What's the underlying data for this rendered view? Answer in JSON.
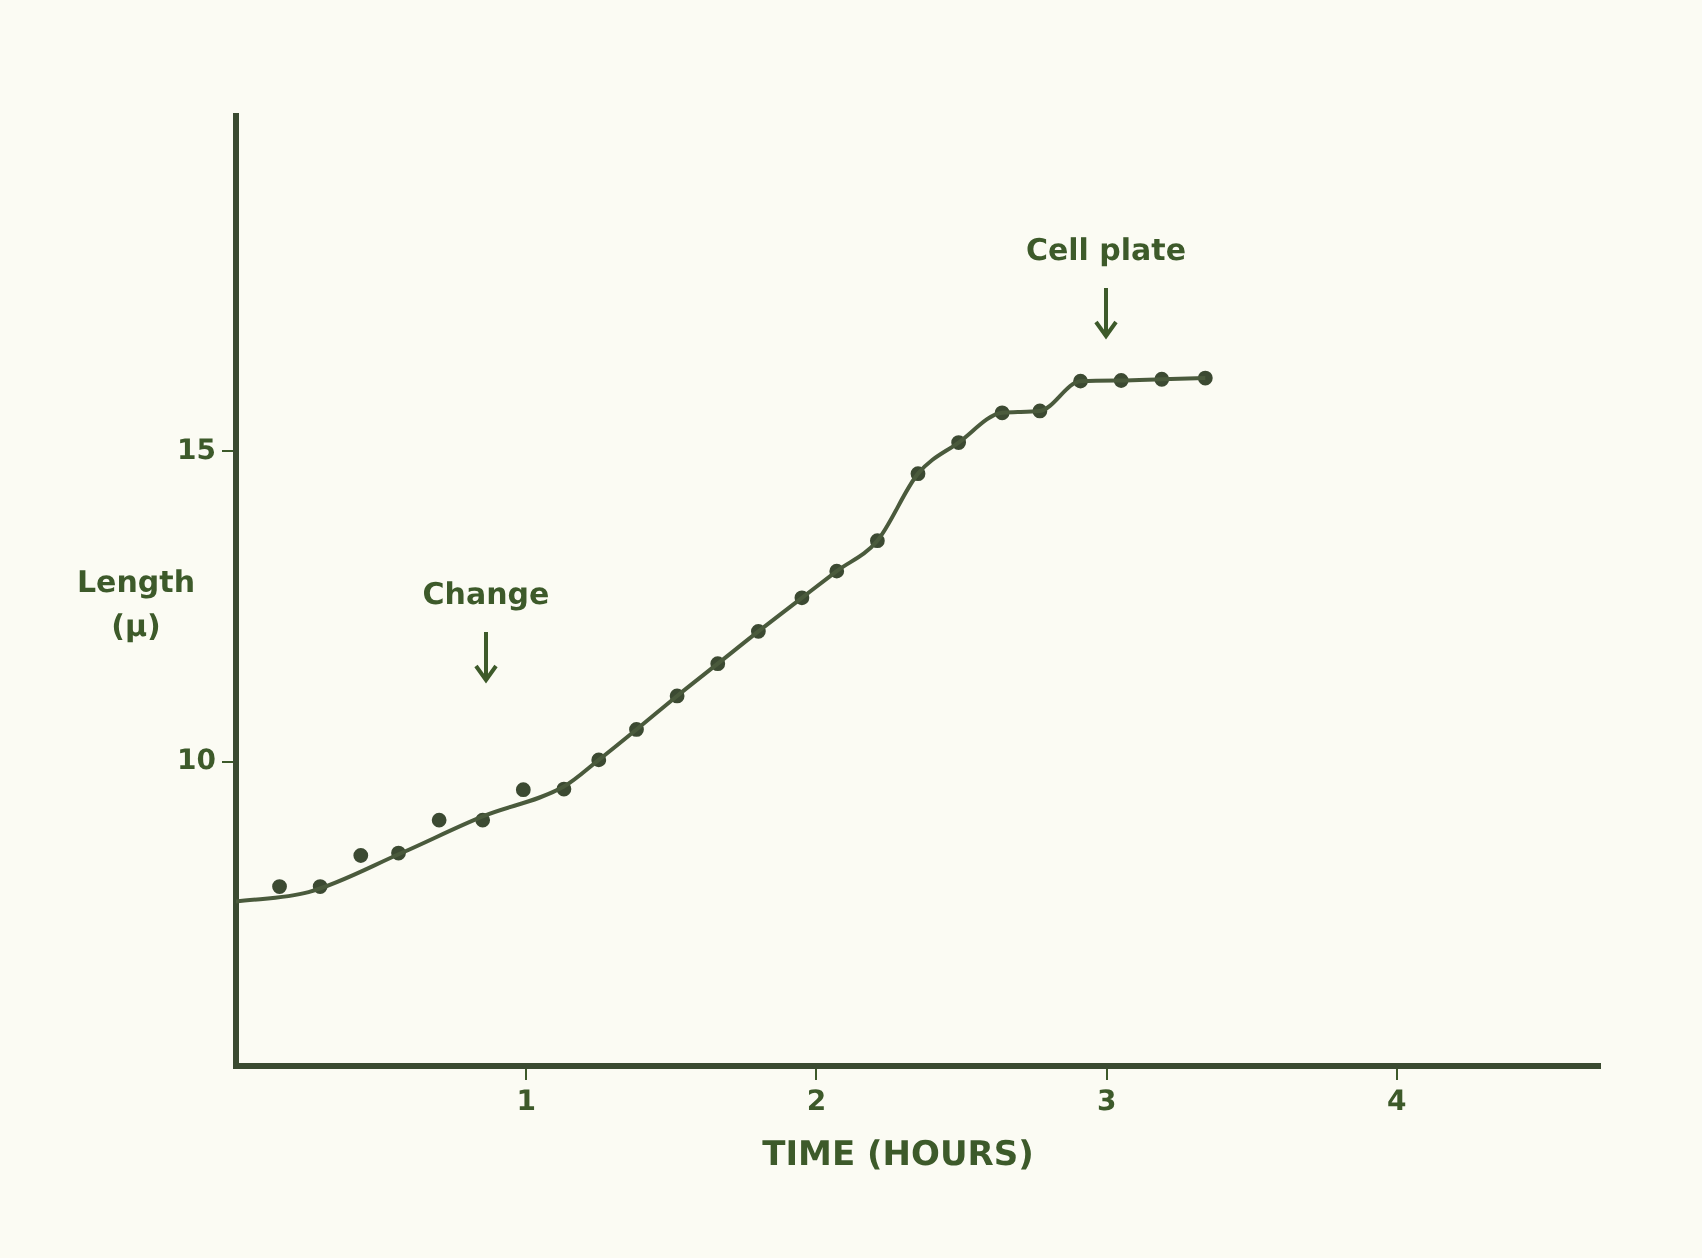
{
  "chart_data": {
    "type": "line",
    "xlabel": "TIME (HOURS)",
    "ylabel": "Length (μ)",
    "xlim": [
      0,
      4.7
    ],
    "ylim": [
      5.1,
      20.4
    ],
    "xticks": [
      1,
      2,
      3,
      4
    ],
    "yticks": [
      10,
      15
    ],
    "grid": false,
    "legend": false,
    "series": [
      {
        "color": "#4a5a3c",
        "marker": "none",
        "x": [
          0,
          0.25,
          0.57,
          0.85,
          1.13,
          1.25,
          1.38,
          1.52,
          1.66,
          1.8,
          1.95,
          2.07,
          2.21,
          2.35,
          2.49,
          2.64,
          2.77,
          2.91,
          3.05,
          3.19,
          3.34
        ],
        "values": [
          7.75,
          7.9,
          8.53,
          9.12,
          9.6,
          10.03,
          10.52,
          11.06,
          11.58,
          12.1,
          12.64,
          13.07,
          13.56,
          14.64,
          15.14,
          15.62,
          15.65,
          16.13,
          16.14,
          16.16,
          16.18
        ]
      },
      {
        "type": "scatter",
        "color": "#3c4a32",
        "marker": "circle",
        "x": [
          0.15,
          0.29,
          0.43,
          0.56,
          0.7,
          0.85,
          0.99,
          1.13,
          1.25,
          1.38,
          1.52,
          1.66,
          1.8,
          1.95,
          2.07,
          2.21,
          2.35,
          2.49,
          2.64,
          2.77,
          2.91,
          3.05,
          3.19,
          3.34
        ],
        "values": [
          7.99,
          7.99,
          8.49,
          8.53,
          9.06,
          9.06,
          9.55,
          9.56,
          10.03,
          10.52,
          11.06,
          11.58,
          12.1,
          12.64,
          13.07,
          13.56,
          14.64,
          15.14,
          15.62,
          15.65,
          16.13,
          16.14,
          16.16,
          16.18
        ]
      }
    ],
    "annotations": [
      "Change",
      "Cell plate"
    ]
  }
}
